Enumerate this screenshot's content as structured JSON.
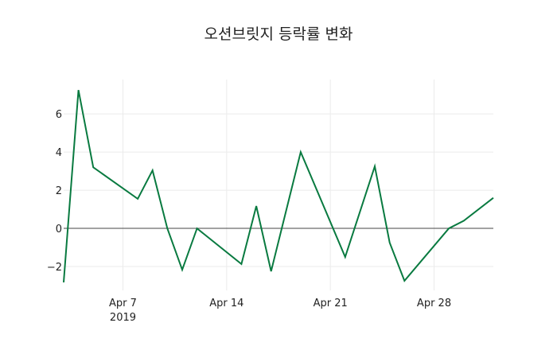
{
  "chart_data": {
    "type": "line",
    "title": "오션브릿지 등락률 변화",
    "xlabel": "",
    "ylabel": "",
    "x": [
      "2019-04-03",
      "2019-04-04",
      "2019-04-05",
      "2019-04-08",
      "2019-04-09",
      "2019-04-10",
      "2019-04-11",
      "2019-04-12",
      "2019-04-15",
      "2019-04-16",
      "2019-04-17",
      "2019-04-19",
      "2019-04-22",
      "2019-04-24",
      "2019-04-25",
      "2019-04-26",
      "2019-04-29",
      "2019-04-30",
      "2019-05-02"
    ],
    "series": [
      {
        "name": "등락률",
        "color": "#097a40",
        "values": [
          -2.83,
          7.25,
          3.2,
          1.55,
          3.04,
          0.0,
          -2.17,
          0.0,
          -1.87,
          1.17,
          -2.25,
          4.0,
          -1.5,
          3.25,
          -0.75,
          -2.75,
          0.0,
          0.4,
          1.6
        ]
      }
    ],
    "x_ticks": [
      {
        "date": "2019-04-07",
        "label": "Apr 7",
        "sublabel": "2019"
      },
      {
        "date": "2019-04-14",
        "label": "Apr 14",
        "sublabel": ""
      },
      {
        "date": "2019-04-21",
        "label": "Apr 21",
        "sublabel": ""
      },
      {
        "date": "2019-04-28",
        "label": "Apr 28",
        "sublabel": ""
      }
    ],
    "y_ticks": [
      -2,
      0,
      2,
      4,
      6
    ],
    "y_tick_labels": [
      "−2",
      "0",
      "2",
      "4",
      "6"
    ],
    "xlim": [
      "2019-04-03",
      "2019-05-02"
    ],
    "ylim": [
      -3.25,
      7.8
    ],
    "grid": true,
    "zero_line": true,
    "legend": "none"
  }
}
